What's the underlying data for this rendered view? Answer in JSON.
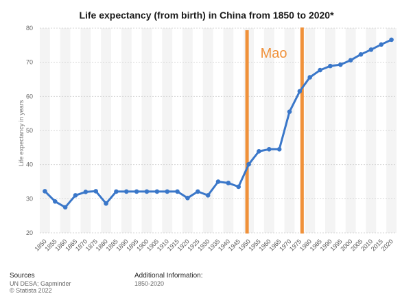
{
  "chart_data": {
    "type": "line",
    "title": "Life expectancy (from birth) in China from 1850 to 2020*",
    "xlabel": "",
    "ylabel": "Life expectancy in years",
    "ylim": [
      20,
      80
    ],
    "yticks": [
      20,
      30,
      40,
      50,
      60,
      70,
      80
    ],
    "grid": true,
    "x": [
      1850,
      1855,
      1860,
      1865,
      1870,
      1875,
      1880,
      1885,
      1890,
      1895,
      1900,
      1905,
      1910,
      1915,
      1920,
      1925,
      1930,
      1935,
      1940,
      1945,
      1950,
      1955,
      1960,
      1965,
      1970,
      1975,
      1980,
      1985,
      1990,
      1995,
      2000,
      2005,
      2010,
      2015,
      2020
    ],
    "series": [
      {
        "name": "Life expectancy",
        "color": "#3a77c9",
        "values": [
          32.2,
          29.2,
          27.5,
          31.0,
          32.0,
          32.2,
          28.6,
          32.1,
          32.1,
          32.1,
          32.1,
          32.1,
          32.1,
          32.1,
          30.2,
          32.1,
          31.0,
          35.0,
          34.6,
          33.5,
          40.1,
          43.9,
          44.5,
          44.5,
          55.5,
          61.5,
          65.6,
          67.7,
          68.9,
          69.3,
          70.6,
          72.3,
          73.7,
          75.2,
          76.6
        ]
      }
    ],
    "annotations": [
      {
        "label": "Mao",
        "x_start": 1949,
        "x_end": 1976,
        "color": "#f0913a"
      }
    ]
  },
  "footer": {
    "sources_heading": "Sources",
    "source_line1": "UN DESA; Gapminder",
    "source_line2": "© Statista 2022",
    "additional_heading": "Additional Information:",
    "additional_line1": "1850-2020"
  }
}
